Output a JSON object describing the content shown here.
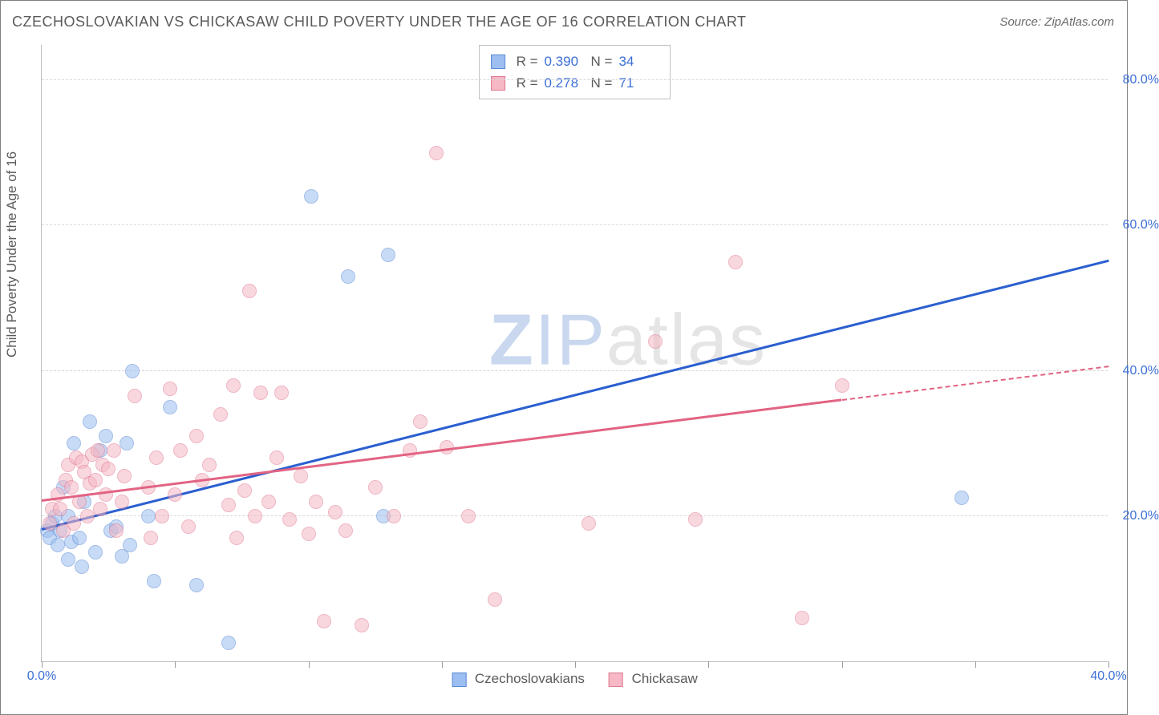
{
  "title": "CZECHOSLOVAKIAN VS CHICKASAW CHILD POVERTY UNDER THE AGE OF 16 CORRELATION CHART",
  "source_label": "Source: ZipAtlas.com",
  "ylabel": "Child Poverty Under the Age of 16",
  "watermark": {
    "part1": "ZIP",
    "part2": "atlas"
  },
  "chart": {
    "type": "scatter",
    "background_color": "#ffffff",
    "border_color": "#808080",
    "grid_color": "#d8d8d8",
    "axis_color": "#bfbfbf",
    "tick_label_color": "#3b6fd6",
    "label_fontsize": 17,
    "tick_fontsize": 16,
    "title_fontsize": 18,
    "title_color": "#5a5a5a",
    "xlim": [
      0,
      40
    ],
    "ylim": [
      0,
      85
    ],
    "x_ticks": [
      0,
      5,
      10,
      15,
      20,
      25,
      30,
      35,
      40
    ],
    "x_tick_labels": {
      "0": "0.0%",
      "40": "40.0%"
    },
    "y_gridlines": [
      20,
      40,
      60,
      80
    ],
    "y_tick_labels": {
      "20": "20.0%",
      "40": "40.0%",
      "60": "60.0%",
      "80": "80.0%"
    },
    "marker_radius": 9,
    "marker_opacity": 0.55,
    "marker_border_width": 1.2
  },
  "series": [
    {
      "name": "Czechoslovakians",
      "fill_color": "#9cbef0",
      "stroke_color": "#5a8ad6",
      "trend_color": "#2b5fd0",
      "trend": {
        "x1": 0,
        "y1": 18,
        "x2": 40,
        "y2": 55,
        "dashed_from_x": null
      },
      "stats": {
        "R": "0.390",
        "N": "34"
      },
      "points": [
        [
          0.2,
          18
        ],
        [
          0.3,
          17
        ],
        [
          0.4,
          19
        ],
        [
          0.5,
          20
        ],
        [
          0.6,
          16
        ],
        [
          0.7,
          18
        ],
        [
          0.8,
          24
        ],
        [
          1.0,
          20
        ],
        [
          1.0,
          14
        ],
        [
          1.1,
          16.5
        ],
        [
          1.2,
          30
        ],
        [
          1.4,
          17
        ],
        [
          1.5,
          13
        ],
        [
          1.6,
          22
        ],
        [
          1.8,
          33
        ],
        [
          2.0,
          15
        ],
        [
          2.2,
          29
        ],
        [
          2.4,
          31
        ],
        [
          2.6,
          18
        ],
        [
          2.8,
          18.5
        ],
        [
          3.0,
          14.5
        ],
        [
          3.2,
          30
        ],
        [
          3.3,
          16
        ],
        [
          3.4,
          40
        ],
        [
          4.0,
          20
        ],
        [
          4.2,
          11
        ],
        [
          4.8,
          35
        ],
        [
          5.8,
          10.5
        ],
        [
          7.0,
          2.5
        ],
        [
          10.1,
          64
        ],
        [
          11.5,
          53
        ],
        [
          12.8,
          20
        ],
        [
          13.0,
          56
        ],
        [
          34.5,
          22.5
        ]
      ]
    },
    {
      "name": "Chickasaw",
      "fill_color": "#f5b8c4",
      "stroke_color": "#e07a93",
      "trend_color": "#e26383",
      "trend": {
        "x1": 0,
        "y1": 22,
        "x2": 40,
        "y2": 40.5,
        "dashed_from_x": 30
      },
      "stats": {
        "R": "0.278",
        "N": "71"
      },
      "points": [
        [
          0.3,
          19
        ],
        [
          0.4,
          21
        ],
        [
          0.6,
          23
        ],
        [
          0.7,
          21
        ],
        [
          0.8,
          18
        ],
        [
          0.9,
          25
        ],
        [
          1.0,
          27
        ],
        [
          1.1,
          24
        ],
        [
          1.2,
          19
        ],
        [
          1.3,
          28
        ],
        [
          1.4,
          22
        ],
        [
          1.5,
          27.5
        ],
        [
          1.6,
          26
        ],
        [
          1.7,
          20
        ],
        [
          1.8,
          24.5
        ],
        [
          1.9,
          28.5
        ],
        [
          2.0,
          25
        ],
        [
          2.1,
          29
        ],
        [
          2.2,
          21
        ],
        [
          2.3,
          27
        ],
        [
          2.4,
          23
        ],
        [
          2.5,
          26.5
        ],
        [
          2.7,
          29
        ],
        [
          2.8,
          18
        ],
        [
          3.0,
          22
        ],
        [
          3.1,
          25.5
        ],
        [
          3.5,
          36.5
        ],
        [
          4.0,
          24
        ],
        [
          4.1,
          17
        ],
        [
          4.3,
          28
        ],
        [
          4.5,
          20
        ],
        [
          4.8,
          37.5
        ],
        [
          5.0,
          23
        ],
        [
          5.2,
          29
        ],
        [
          5.5,
          18.5
        ],
        [
          5.8,
          31
        ],
        [
          6.0,
          25
        ],
        [
          6.3,
          27
        ],
        [
          6.7,
          34
        ],
        [
          7.0,
          21.5
        ],
        [
          7.2,
          38
        ],
        [
          7.3,
          17
        ],
        [
          7.6,
          23.5
        ],
        [
          7.8,
          51
        ],
        [
          8.0,
          20
        ],
        [
          8.2,
          37
        ],
        [
          8.5,
          22
        ],
        [
          8.8,
          28
        ],
        [
          9.0,
          37
        ],
        [
          9.3,
          19.5
        ],
        [
          9.7,
          25.5
        ],
        [
          10.0,
          17.5
        ],
        [
          10.3,
          22
        ],
        [
          10.6,
          5.5
        ],
        [
          11.0,
          20.5
        ],
        [
          11.4,
          18
        ],
        [
          12.0,
          5
        ],
        [
          12.5,
          24
        ],
        [
          13.2,
          20
        ],
        [
          13.8,
          29
        ],
        [
          14.2,
          33
        ],
        [
          14.8,
          70
        ],
        [
          15.2,
          29.5
        ],
        [
          16.0,
          20
        ],
        [
          17.0,
          8.5
        ],
        [
          20.5,
          19
        ],
        [
          23.0,
          44
        ],
        [
          24.5,
          19.5
        ],
        [
          26.0,
          55
        ],
        [
          28.5,
          6
        ],
        [
          30.0,
          38
        ]
      ]
    }
  ],
  "legend": {
    "items": [
      "Czechoslovakians",
      "Chickasaw"
    ]
  },
  "stats_box": {
    "rows": [
      {
        "swatch": 0,
        "R_label": "R =",
        "N_label": "N ="
      },
      {
        "swatch": 1,
        "R_label": "R =",
        "N_label": "N ="
      }
    ]
  }
}
